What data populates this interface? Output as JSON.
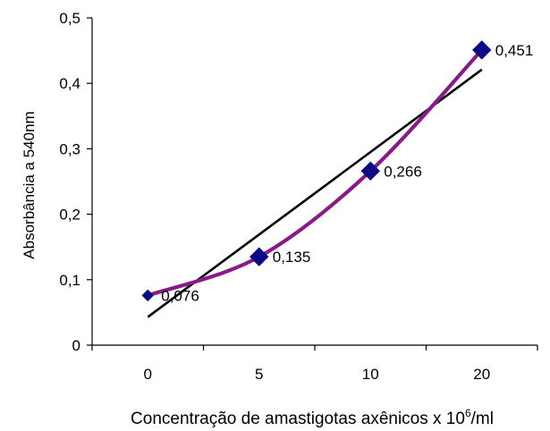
{
  "chart_data": {
    "type": "line",
    "categories": [
      "0",
      "5",
      "10",
      "20"
    ],
    "series": [
      {
        "values": [
          0.076,
          0.135,
          0.266,
          0.451
        ],
        "labels": [
          "0,076",
          "0,135",
          "0,266",
          "0,451"
        ],
        "color": "#8B1A89",
        "marker_color": "#0B0B86"
      }
    ],
    "trendline": {
      "type": "linear",
      "color": "#000000",
      "start_value": 0.043,
      "end_value": 0.421
    },
    "ylabel": "Absorbância a 540nm",
    "xlabel": {
      "main": "Concentração de amastigotas axênicos x 10",
      "superscript": "6",
      "suffix": "/ml"
    },
    "ylim": [
      0,
      0.5
    ],
    "yticks": [
      0,
      0.1,
      0.2,
      0.3,
      0.4,
      0.5
    ],
    "ytick_labels": [
      "0",
      "0,1",
      "0,2",
      "0,3",
      "0,4",
      "0,5"
    ],
    "grid": false,
    "legend": "none"
  }
}
